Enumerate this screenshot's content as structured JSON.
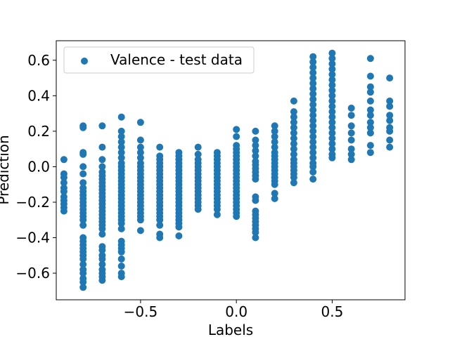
{
  "chart_data": {
    "type": "scatter",
    "xlabel": "Labels",
    "ylabel": "Prediction",
    "xlim": [
      -0.94,
      0.88
    ],
    "ylim": [
      -0.75,
      0.71
    ],
    "xticks": [
      -0.5,
      0.0,
      0.5
    ],
    "xtick_labels": [
      "−0.5",
      "0.0",
      "0.5"
    ],
    "yticks": [
      -0.6,
      -0.4,
      -0.2,
      0.0,
      0.2,
      0.4,
      0.6
    ],
    "ytick_labels": [
      "−0.6",
      "−0.4",
      "−0.2",
      "0.0",
      "0.2",
      "0.4",
      "0.6"
    ],
    "grid": false,
    "legend": {
      "placement": "top-left"
    },
    "series": [
      {
        "name": "Valence - test data",
        "color": "#1f77b4",
        "columns": [
          {
            "x": -0.9,
            "y": [
              0.04,
              -0.04,
              -0.06,
              -0.09,
              -0.12,
              -0.14,
              -0.17,
              -0.19,
              -0.21,
              -0.23,
              -0.25
            ]
          },
          {
            "x": -0.8,
            "y": [
              0.23,
              0.22,
              0.08,
              0.07,
              0.0,
              -0.04,
              -0.09,
              -0.12,
              -0.14,
              -0.16,
              -0.18,
              -0.2,
              -0.22,
              -0.24,
              -0.26,
              -0.28,
              -0.3,
              -0.33,
              -0.4,
              -0.42,
              -0.44,
              -0.46,
              -0.48,
              -0.5,
              -0.52,
              -0.55,
              -0.58,
              -0.6,
              -0.63,
              -0.65,
              -0.68
            ]
          },
          {
            "x": -0.7,
            "y": [
              0.23,
              0.11,
              0.04,
              0.0,
              -0.03,
              -0.05,
              -0.07,
              -0.09,
              -0.11,
              -0.13,
              -0.15,
              -0.17,
              -0.19,
              -0.21,
              -0.23,
              -0.25,
              -0.27,
              -0.29,
              -0.31,
              -0.33,
              -0.35,
              -0.38,
              -0.45,
              -0.47,
              -0.5,
              -0.52,
              -0.55,
              -0.58,
              -0.6,
              -0.62,
              -0.64
            ]
          },
          {
            "x": -0.6,
            "y": [
              0.28,
              0.2,
              0.17,
              0.14,
              0.11,
              0.08,
              0.05,
              0.02,
              0.0,
              -0.02,
              -0.04,
              -0.06,
              -0.08,
              -0.1,
              -0.12,
              -0.14,
              -0.16,
              -0.18,
              -0.2,
              -0.22,
              -0.24,
              -0.26,
              -0.28,
              -0.3,
              -0.32,
              -0.35,
              -0.42,
              -0.44,
              -0.46,
              -0.48,
              -0.52,
              -0.56,
              -0.6,
              -0.62
            ]
          },
          {
            "x": -0.5,
            "y": [
              0.25,
              0.15,
              0.11,
              0.08,
              0.05,
              0.02,
              0.0,
              -0.02,
              -0.04,
              -0.06,
              -0.08,
              -0.1,
              -0.12,
              -0.14,
              -0.16,
              -0.18,
              -0.2,
              -0.22,
              -0.24,
              -0.26,
              -0.28,
              -0.3,
              -0.36
            ]
          },
          {
            "x": -0.4,
            "y": [
              0.11,
              0.06,
              0.04,
              0.02,
              0.0,
              -0.02,
              -0.04,
              -0.06,
              -0.08,
              -0.1,
              -0.12,
              -0.14,
              -0.16,
              -0.18,
              -0.2,
              -0.22,
              -0.24,
              -0.26,
              -0.28,
              -0.3,
              -0.33,
              -0.38,
              -0.4
            ]
          },
          {
            "x": -0.3,
            "y": [
              0.08,
              0.06,
              0.04,
              0.02,
              0.0,
              -0.02,
              -0.04,
              -0.06,
              -0.08,
              -0.1,
              -0.12,
              -0.14,
              -0.16,
              -0.18,
              -0.2,
              -0.22,
              -0.24,
              -0.26,
              -0.28,
              -0.3,
              -0.32,
              -0.34,
              -0.39
            ]
          },
          {
            "x": -0.2,
            "y": [
              0.11,
              0.07,
              0.04,
              0.02,
              0.0,
              -0.02,
              -0.04,
              -0.06,
              -0.08,
              -0.1,
              -0.12,
              -0.14,
              -0.16,
              -0.18,
              -0.2,
              -0.22,
              -0.24
            ]
          },
          {
            "x": -0.1,
            "y": [
              0.08,
              0.06,
              0.04,
              0.02,
              0.0,
              -0.02,
              -0.04,
              -0.06,
              -0.08,
              -0.1,
              -0.12,
              -0.14,
              -0.16,
              -0.18,
              -0.2,
              -0.22,
              -0.24,
              -0.27
            ]
          },
          {
            "x": 0.0,
            "y": [
              0.21,
              0.17,
              0.12,
              0.1,
              0.08,
              0.06,
              0.04,
              0.02,
              0.0,
              -0.02,
              -0.04,
              -0.06,
              -0.08,
              -0.1,
              -0.12,
              -0.14,
              -0.16,
              -0.18,
              -0.2,
              -0.22,
              -0.24,
              -0.26,
              -0.28
            ]
          },
          {
            "x": 0.1,
            "y": [
              0.2,
              0.15,
              0.12,
              0.09,
              0.06,
              0.03,
              0.01,
              -0.01,
              -0.03,
              -0.05,
              -0.07,
              -0.17,
              -0.19,
              -0.25,
              -0.27,
              -0.29,
              -0.31,
              -0.33,
              -0.35,
              -0.37,
              -0.4
            ]
          },
          {
            "x": 0.2,
            "y": [
              0.23,
              0.2,
              0.17,
              0.14,
              0.11,
              0.08,
              0.06,
              0.04,
              0.02,
              0.0,
              -0.02,
              -0.04,
              -0.06,
              -0.08,
              -0.1,
              -0.15,
              -0.18
            ]
          },
          {
            "x": 0.3,
            "y": [
              0.37,
              0.31,
              0.28,
              0.25,
              0.22,
              0.19,
              0.16,
              0.13,
              0.1,
              0.07,
              0.04,
              0.02,
              0.0,
              -0.02,
              -0.04,
              -0.06,
              -0.09
            ]
          },
          {
            "x": 0.4,
            "y": [
              0.62,
              0.59,
              0.56,
              0.53,
              0.5,
              0.47,
              0.44,
              0.41,
              0.38,
              0.35,
              0.32,
              0.29,
              0.26,
              0.23,
              0.2,
              0.17,
              0.14,
              0.11,
              0.08,
              0.05,
              0.02,
              0.0,
              -0.03,
              -0.07
            ]
          },
          {
            "x": 0.5,
            "y": [
              0.64,
              0.61,
              0.58,
              0.55,
              0.52,
              0.49,
              0.46,
              0.43,
              0.4,
              0.37,
              0.34,
              0.31,
              0.28,
              0.25,
              0.22,
              0.19,
              0.16,
              0.13,
              0.1,
              0.07,
              0.05
            ]
          },
          {
            "x": 0.6,
            "y": [
              0.33,
              0.29,
              0.23,
              0.19,
              0.15,
              0.1,
              0.07,
              0.04
            ]
          },
          {
            "x": 0.7,
            "y": [
              0.61,
              0.51,
              0.45,
              0.42,
              0.37,
              0.32,
              0.29,
              0.25,
              0.22,
              0.19,
              0.12,
              0.08
            ]
          },
          {
            "x": 0.8,
            "y": [
              0.5,
              0.37,
              0.34,
              0.29,
              0.26,
              0.22,
              0.2,
              0.15,
              0.11
            ]
          }
        ]
      }
    ]
  }
}
